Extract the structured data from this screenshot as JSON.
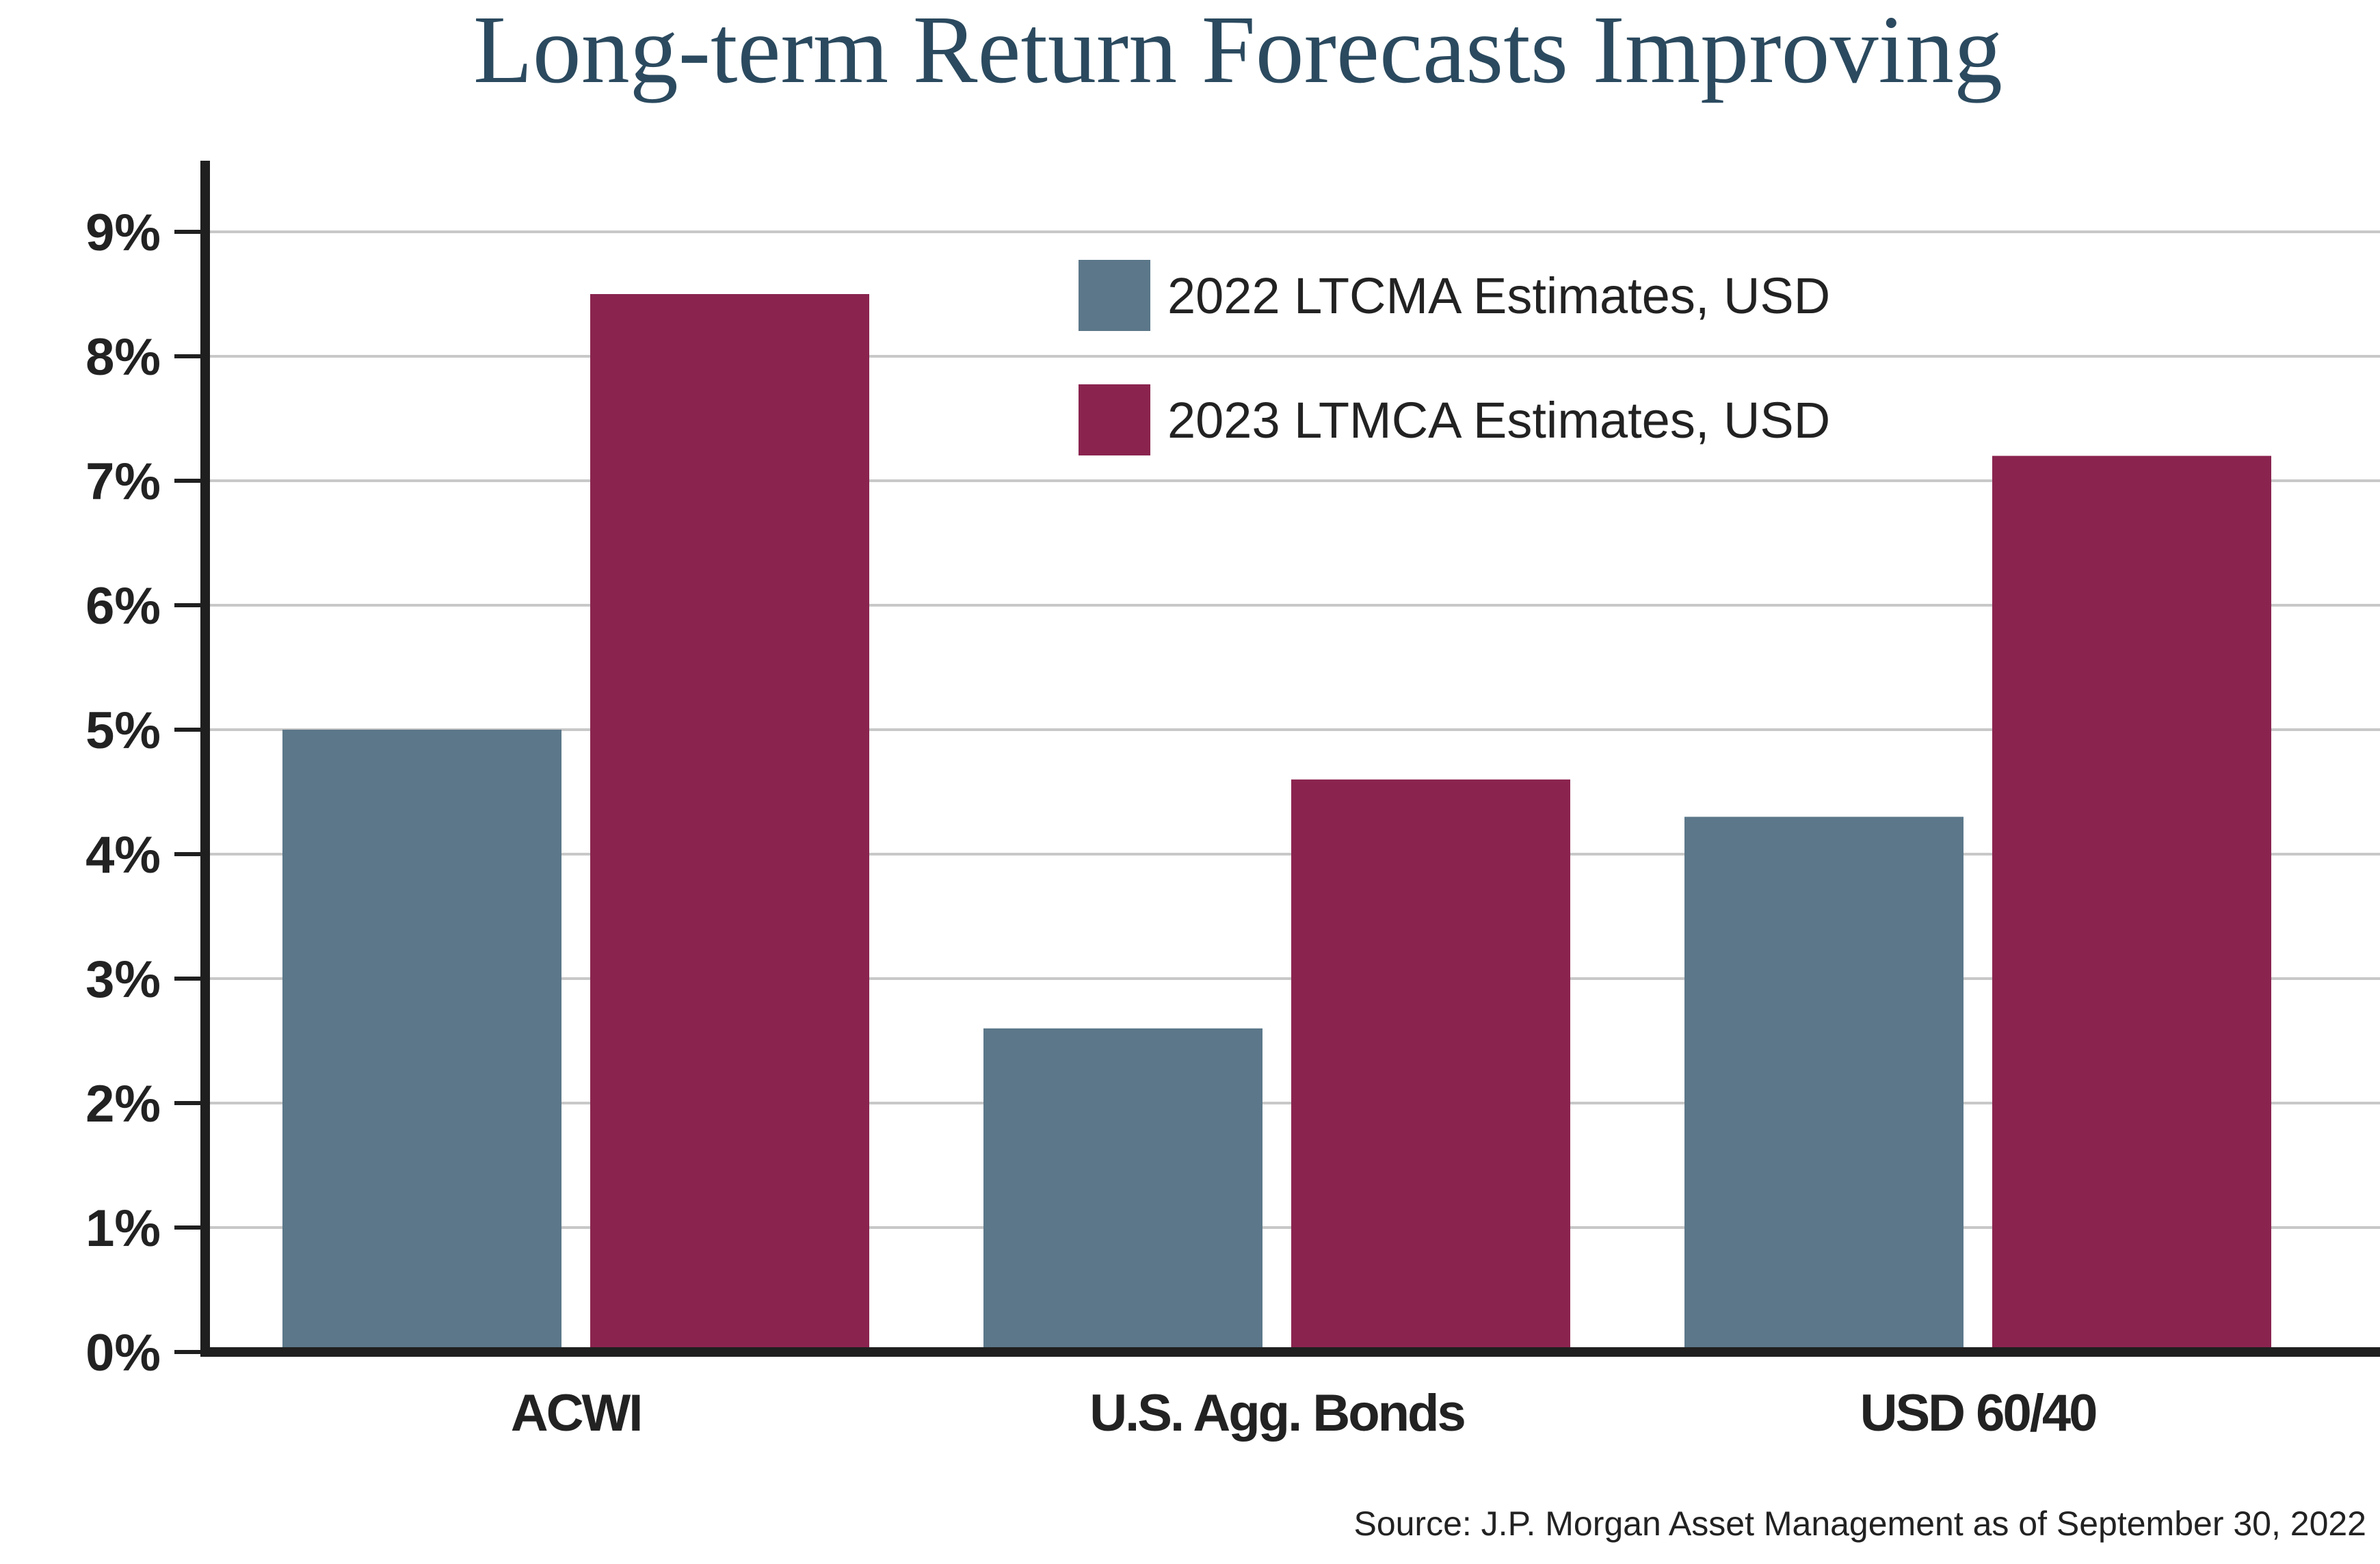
{
  "chart_data": {
    "type": "bar",
    "title": "Long-term Return Forecasts Improving",
    "categories": [
      "ACWI",
      "U.S. Agg. Bonds",
      "USD 60/40"
    ],
    "series": [
      {
        "name": "2022 LTCMA Estimates, USD",
        "values": [
          5.0,
          2.6,
          4.3
        ],
        "color": "#5b7789"
      },
      {
        "name": "2023 LTMCA Estimates, USD",
        "values": [
          8.5,
          4.6,
          7.2
        ],
        "color": "#8a244f"
      }
    ],
    "y_ticks": [
      "0%",
      "1%",
      "2%",
      "3%",
      "4%",
      "5%",
      "6%",
      "7%",
      "8%",
      "9%"
    ],
    "ylim": [
      0,
      9.5
    ],
    "grid": true,
    "legend_position": "top-center",
    "source": "Source: J.P. Morgan Asset Management as of September 30, 2022",
    "colors": {
      "title": "#2b4a5f",
      "axis": "#1f1f1f",
      "grid": "#c8c8c8",
      "text": "#222222"
    }
  }
}
